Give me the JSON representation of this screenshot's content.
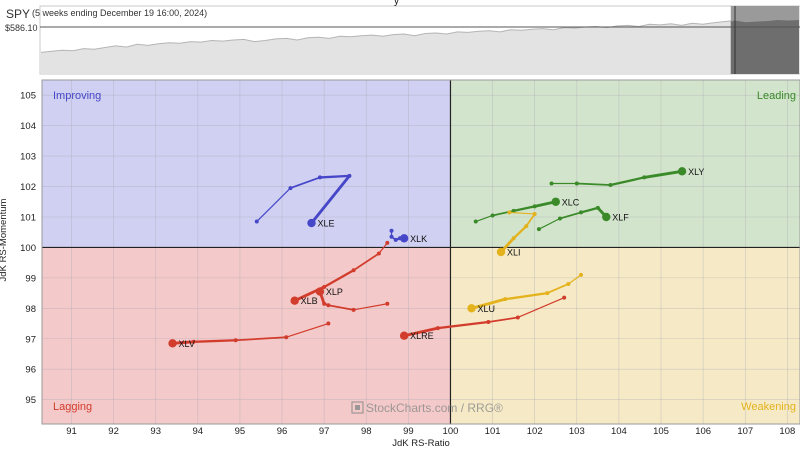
{
  "header": {
    "symbol": "SPY",
    "period": "(5 weeks ending December 19 16:00, 2024)",
    "price_label": "$586.10",
    "chart_title": "y"
  },
  "watermark": "StockCharts.com / RRG®",
  "chart_data": [
    {
      "type": "area",
      "name": "SPY price strip",
      "price_level": 586.1,
      "shaded_recent_tail_fraction": 0.09,
      "relative_values": [
        0.4,
        0.42,
        0.44,
        0.43,
        0.47,
        0.46,
        0.49,
        0.52,
        0.5,
        0.55,
        0.53,
        0.56,
        0.58,
        0.57,
        0.6,
        0.59,
        0.62,
        0.61,
        0.63,
        0.64,
        0.6,
        0.62,
        0.65,
        0.66,
        0.63,
        0.67,
        0.68,
        0.66,
        0.7,
        0.69,
        0.71,
        0.72,
        0.7,
        0.73,
        0.74,
        0.71,
        0.75,
        0.76,
        0.74,
        0.78,
        0.77,
        0.79,
        0.8,
        0.78,
        0.82,
        0.81,
        0.83,
        0.84,
        0.82,
        0.86,
        0.85,
        0.87,
        0.88,
        0.86,
        0.89,
        0.9,
        0.88,
        0.92,
        0.91,
        0.93,
        0.9,
        0.94,
        0.92,
        0.95,
        0.97,
        0.99,
        0.96,
        0.97,
        0.98,
        1.0,
        0.99,
        1.0
      ]
    },
    {
      "type": "scatter",
      "title": "",
      "xlabel": "JdK RS-Ratio",
      "ylabel": "JdK RS-Momentum",
      "xlim": [
        90.3,
        108.3
      ],
      "ylim": [
        94.2,
        105.5
      ],
      "x_ticks": [
        "91",
        "92",
        "93",
        "94",
        "95",
        "96",
        "97",
        "98",
        "99",
        "100",
        "101",
        "102",
        "103",
        "104",
        "105",
        "106",
        "107",
        "108"
      ],
      "y_ticks": [
        "95",
        "96",
        "97",
        "98",
        "99",
        "100",
        "101",
        "102",
        "103",
        "104",
        "105"
      ],
      "grid": true,
      "center": [
        100,
        100
      ],
      "quadrants": [
        {
          "name": "Improving",
          "color": "#cfd0f2",
          "text_color": "#4646c8",
          "position": "top-left"
        },
        {
          "name": "Leading",
          "color": "#d3e4cc",
          "text_color": "#3a8a2a",
          "position": "top-right"
        },
        {
          "name": "Lagging",
          "color": "#f4c9c9",
          "text_color": "#d23c2c",
          "position": "bottom-left"
        },
        {
          "name": "Weakening",
          "color": "#f6eac6",
          "text_color": "#e3b21c",
          "position": "bottom-right"
        }
      ],
      "series": [
        {
          "name": "XLY",
          "color": "#3a8a2a",
          "points": [
            [
              102.4,
              102.1
            ],
            [
              103.0,
              102.1
            ],
            [
              103.8,
              102.05
            ],
            [
              104.6,
              102.3
            ],
            [
              105.5,
              102.5
            ]
          ]
        },
        {
          "name": "XLC",
          "color": "#3a8a2a",
          "points": [
            [
              100.6,
              100.85
            ],
            [
              101.0,
              101.05
            ],
            [
              101.5,
              101.2
            ],
            [
              102.0,
              101.35
            ],
            [
              102.5,
              101.5
            ]
          ]
        },
        {
          "name": "XLF",
          "color": "#3a8a2a",
          "points": [
            [
              102.1,
              100.6
            ],
            [
              102.6,
              100.95
            ],
            [
              103.1,
              101.15
            ],
            [
              103.5,
              101.3
            ],
            [
              103.7,
              101.0
            ]
          ]
        },
        {
          "name": "XLI",
          "color": "#e3b21c",
          "points": [
            [
              101.4,
              101.15
            ],
            [
              102.0,
              101.1
            ],
            [
              101.8,
              100.7
            ],
            [
              101.5,
              100.3
            ],
            [
              101.2,
              99.85
            ]
          ]
        },
        {
          "name": "XLU",
          "color": "#e3b21c",
          "points": [
            [
              103.1,
              99.1
            ],
            [
              102.8,
              98.8
            ],
            [
              102.3,
              98.5
            ],
            [
              101.3,
              98.3
            ],
            [
              100.5,
              98.0
            ]
          ]
        },
        {
          "name": "XLRE",
          "color": "#d23c2c",
          "points": [
            [
              102.7,
              98.35
            ],
            [
              101.6,
              97.7
            ],
            [
              100.9,
              97.55
            ],
            [
              99.7,
              97.35
            ],
            [
              98.9,
              97.1
            ]
          ]
        },
        {
          "name": "XLP",
          "color": "#d23c2c",
          "points": [
            [
              98.5,
              98.15
            ],
            [
              97.7,
              97.95
            ],
            [
              97.1,
              98.1
            ],
            [
              97.0,
              98.15
            ],
            [
              96.9,
              98.55
            ]
          ]
        },
        {
          "name": "XLB",
          "color": "#d23c2c",
          "points": [
            [
              98.5,
              100.15
            ],
            [
              98.3,
              99.8
            ],
            [
              97.7,
              99.25
            ],
            [
              97.0,
              98.7
            ],
            [
              96.3,
              98.25
            ]
          ]
        },
        {
          "name": "XLV",
          "color": "#d23c2c",
          "points": [
            [
              97.1,
              97.5
            ],
            [
              96.1,
              97.05
            ],
            [
              94.9,
              96.95
            ],
            [
              93.9,
              96.9
            ],
            [
              93.4,
              96.85
            ]
          ]
        },
        {
          "name": "XLE",
          "color": "#4646c8",
          "points": [
            [
              95.4,
              100.85
            ],
            [
              96.2,
              101.95
            ],
            [
              96.9,
              102.3
            ],
            [
              97.6,
              102.35
            ],
            [
              96.7,
              100.8
            ]
          ]
        },
        {
          "name": "XLK",
          "color": "#4646c8",
          "points": [
            [
              98.6,
              100.55
            ],
            [
              98.6,
              100.35
            ],
            [
              98.7,
              100.25
            ],
            [
              98.8,
              100.3
            ],
            [
              98.9,
              100.3
            ]
          ]
        }
      ]
    }
  ]
}
